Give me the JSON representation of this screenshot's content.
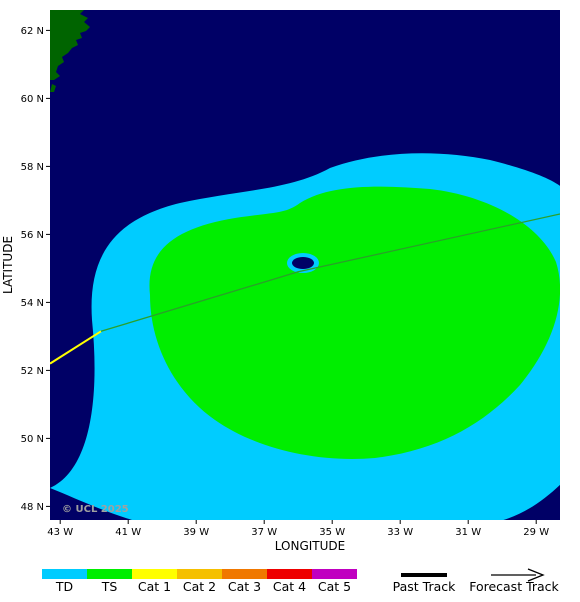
{
  "chart_data": {
    "type": "map",
    "title": "",
    "xlabel": "LONGITUDE",
    "ylabel": "LATITUDE",
    "x_range_deg_w": [
      43.3,
      28.3
    ],
    "y_range_deg_n": [
      47.6,
      62.6
    ],
    "x_ticks": [
      {
        "value": 43,
        "label": "43 W"
      },
      {
        "value": 41,
        "label": "41 W"
      },
      {
        "value": 39,
        "label": "39 W"
      },
      {
        "value": 37,
        "label": "37 W"
      },
      {
        "value": 35,
        "label": "35 W"
      },
      {
        "value": 33,
        "label": "33 W"
      },
      {
        "value": 31,
        "label": "31 W"
      },
      {
        "value": 29,
        "label": "29 W"
      }
    ],
    "y_ticks": [
      {
        "value": 62,
        "label": "62 N"
      },
      {
        "value": 60,
        "label": "60 N"
      },
      {
        "value": 58,
        "label": "58 N"
      },
      {
        "value": 56,
        "label": "56 N"
      },
      {
        "value": 54,
        "label": "54 N"
      },
      {
        "value": 52,
        "label": "52 N"
      },
      {
        "value": 50,
        "label": "50 N"
      },
      {
        "value": 48,
        "label": "48 N"
      }
    ],
    "past_track": [
      {
        "lon_w": 43.3,
        "lat_n": 52.2
      },
      {
        "lon_w": 41.8,
        "lat_n": 53.15
      }
    ],
    "forecast_track": [
      {
        "lon_w": 41.8,
        "lat_n": 53.15
      },
      {
        "lon_w": 36.0,
        "lat_n": 54.9
      },
      {
        "lon_w": 28.3,
        "lat_n": 56.6
      }
    ],
    "storm_center": {
      "lon_w": 35.9,
      "lat_n": 54.95
    },
    "copyright": "© UCL 2025",
    "colors": {
      "ocean": "#000066",
      "land": "#006400",
      "td": "#00ccff",
      "ts": "#00ee00",
      "cat1": "#ffff00",
      "cat2": "#f5c000",
      "cat3": "#f07800",
      "cat4": "#ee0000",
      "cat5": "#c000c0"
    }
  },
  "legend": {
    "categories": [
      {
        "label": "TD",
        "color": "#00ccff"
      },
      {
        "label": "TS",
        "color": "#00ee00"
      },
      {
        "label": "Cat 1",
        "color": "#ffff00"
      },
      {
        "label": "Cat 2",
        "color": "#f5c000"
      },
      {
        "label": "Cat 3",
        "color": "#f07800"
      },
      {
        "label": "Cat 4",
        "color": "#ee0000"
      },
      {
        "label": "Cat 5",
        "color": "#c000c0"
      }
    ],
    "past_track_label": "Past Track",
    "forecast_track_label": "Forecast Track"
  }
}
